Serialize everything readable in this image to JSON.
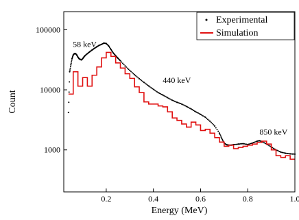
{
  "chart_data": {
    "type": "line",
    "xlabel": "Energy (MeV)",
    "ylabel": "Count",
    "xlim": [
      0.02,
      1.0
    ],
    "ylim": [
      200,
      200000
    ],
    "yscale": "log",
    "x_ticks": [
      0.2,
      0.4,
      0.6,
      0.8,
      1.0
    ],
    "x_tick_labels": [
      "0.2",
      "0.4",
      "0.6",
      "0.8",
      "1.0"
    ],
    "y_ticks": [
      1000,
      10000,
      100000
    ],
    "y_tick_labels": [
      "1000",
      "10000",
      "100000"
    ],
    "legend_position": "top-right",
    "annotations": [
      {
        "text": "58 keV",
        "x": 0.058,
        "y": 52000
      },
      {
        "text": "440 keV",
        "x": 0.44,
        "y": 13000
      },
      {
        "text": "850 keV",
        "x": 0.85,
        "y": 1800
      }
    ],
    "series": [
      {
        "name": "Experimental",
        "style": "dots",
        "color": "#000000",
        "x": [
          0.04,
          0.045,
          0.05,
          0.055,
          0.06,
          0.065,
          0.07,
          0.075,
          0.08,
          0.085,
          0.09,
          0.095,
          0.1,
          0.105,
          0.11,
          0.12,
          0.13,
          0.14,
          0.15,
          0.16,
          0.17,
          0.18,
          0.19,
          0.2,
          0.21,
          0.22,
          0.23,
          0.24,
          0.25,
          0.26,
          0.28,
          0.3,
          0.32,
          0.34,
          0.36,
          0.38,
          0.4,
          0.42,
          0.44,
          0.46,
          0.48,
          0.5,
          0.52,
          0.54,
          0.56,
          0.58,
          0.6,
          0.62,
          0.64,
          0.66,
          0.68,
          0.69,
          0.7,
          0.71,
          0.72,
          0.73,
          0.74,
          0.76,
          0.78,
          0.8,
          0.82,
          0.84,
          0.85,
          0.86,
          0.88,
          0.9,
          0.92,
          0.94,
          0.96,
          0.98,
          1.0
        ],
        "y": [
          4200,
          20000,
          26000,
          33000,
          38000,
          40000,
          40000,
          38000,
          35000,
          33000,
          32000,
          31500,
          33000,
          35000,
          37000,
          40000,
          43000,
          46000,
          49000,
          52000,
          55000,
          57000,
          60000,
          59000,
          54000,
          47000,
          41000,
          37000,
          33500,
          30500,
          25000,
          21000,
          17800,
          15300,
          13300,
          11600,
          10200,
          9000,
          8200,
          7400,
          6700,
          6200,
          5800,
          5300,
          4800,
          4300,
          3900,
          3500,
          3000,
          2500,
          1900,
          1550,
          1300,
          1220,
          1200,
          1200,
          1220,
          1250,
          1270,
          1230,
          1300,
          1400,
          1420,
          1380,
          1250,
          1120,
          1000,
          920,
          880,
          860,
          850
        ]
      },
      {
        "name": "Simulation",
        "style": "step",
        "color": "#e01010",
        "x": [
          0.04,
          0.06,
          0.08,
          0.1,
          0.12,
          0.14,
          0.16,
          0.18,
          0.2,
          0.22,
          0.24,
          0.26,
          0.28,
          0.3,
          0.32,
          0.34,
          0.36,
          0.38,
          0.4,
          0.42,
          0.44,
          0.46,
          0.48,
          0.5,
          0.52,
          0.54,
          0.56,
          0.58,
          0.6,
          0.62,
          0.64,
          0.66,
          0.68,
          0.7,
          0.72,
          0.74,
          0.76,
          0.78,
          0.8,
          0.82,
          0.84,
          0.86,
          0.88,
          0.9,
          0.92,
          0.94,
          0.96,
          0.98
        ],
        "y": [
          8500,
          20000,
          11500,
          16000,
          11500,
          17500,
          24000,
          34000,
          42000,
          36000,
          28000,
          23000,
          18500,
          15500,
          11200,
          9000,
          6300,
          5800,
          5800,
          5400,
          5200,
          4300,
          3400,
          3100,
          2700,
          2400,
          2900,
          2600,
          2100,
          2200,
          1900,
          1600,
          1350,
          1150,
          1200,
          1050,
          1100,
          1150,
          1200,
          1250,
          1330,
          1400,
          1250,
          1000,
          800,
          750,
          800,
          700
        ]
      }
    ]
  }
}
